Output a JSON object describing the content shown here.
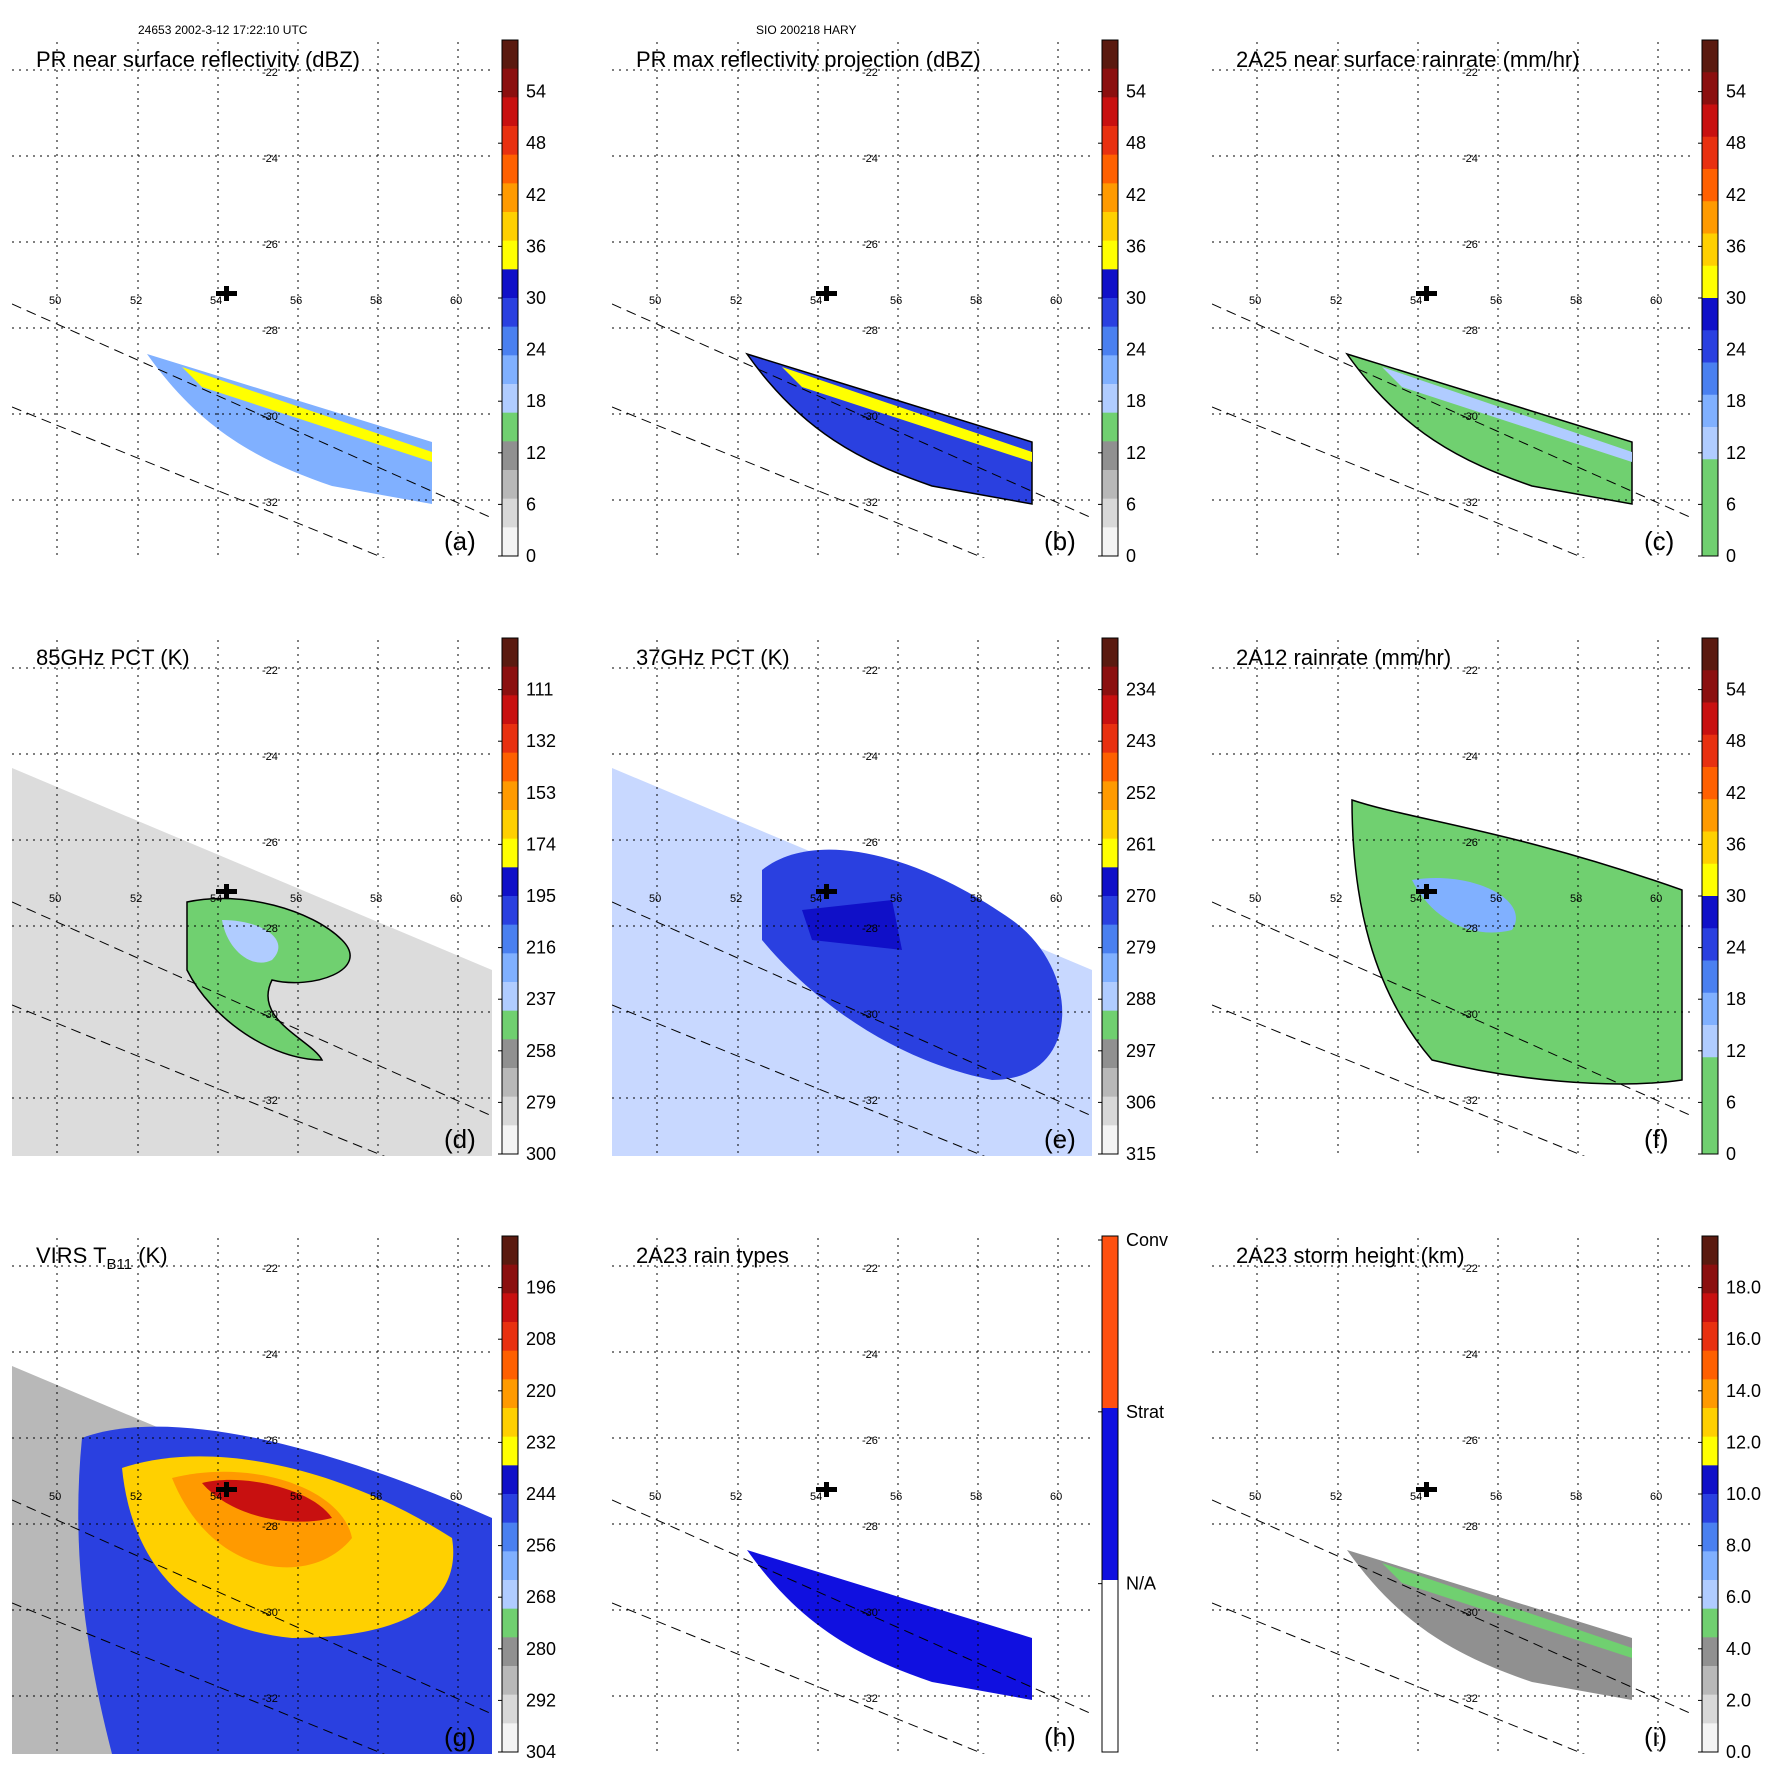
{
  "header": {
    "orbit_info": "24653 2002-3-12 17:22:10 UTC",
    "storm_info": "SIO 200218 HARY"
  },
  "lon_labels": [
    "50",
    "52",
    "54",
    "56",
    "58",
    "60"
  ],
  "lat_labels": [
    "-22",
    "-24",
    "-26",
    "-28",
    "-30",
    "-32"
  ],
  "panels": [
    {
      "id": "a",
      "title": "PR near surface reflectivity (dBZ)",
      "label": "(a)",
      "cb_labels": [
        "54",
        "48",
        "42",
        "36",
        "30",
        "24",
        "18",
        "12",
        "6",
        "0"
      ],
      "cb_colors": [
        "#5a1a10",
        "#8b0f0f",
        "#c81010",
        "#e83010",
        "#ff6000",
        "#ff9a00",
        "#ffd000",
        "#ffff00",
        "#1010c8",
        "#2a40e0",
        "#4a80f0",
        "#80b0ff",
        "#b0ccff",
        "#70d070",
        "#909090",
        "#b8b8b8",
        "#d8d8d8",
        "#f4f4f4"
      ],
      "swath": "pr"
    },
    {
      "id": "b",
      "title": "PR max reflectivity projection (dBZ)",
      "label": "(b)",
      "cb_labels": [
        "54",
        "48",
        "42",
        "36",
        "30",
        "24",
        "18",
        "12",
        "6",
        "0"
      ],
      "cb_colors": [
        "#5a1a10",
        "#8b0f0f",
        "#c81010",
        "#e83010",
        "#ff6000",
        "#ff9a00",
        "#ffd000",
        "#ffff00",
        "#1010c8",
        "#2a40e0",
        "#4a80f0",
        "#80b0ff",
        "#b0ccff",
        "#70d070",
        "#909090",
        "#b8b8b8",
        "#d8d8d8",
        "#f4f4f4"
      ],
      "swath": "pr"
    },
    {
      "id": "c",
      "title": "2A25 near surface rainrate (mm/hr)",
      "label": "(c)",
      "cb_labels": [
        "54",
        "48",
        "42",
        "36",
        "30",
        "24",
        "18",
        "12",
        "6",
        "0"
      ],
      "cb_colors": [
        "#5a1a10",
        "#8b0f0f",
        "#c81010",
        "#e83010",
        "#ff6000",
        "#ff9a00",
        "#ffd000",
        "#ffff00",
        "#1010c8",
        "#2a40e0",
        "#4a80f0",
        "#80b0ff",
        "#b0ccff",
        "#70d070",
        "#70d070",
        "#70d070"
      ],
      "swath": "pr"
    },
    {
      "id": "d",
      "title": "85GHz PCT (K)",
      "label": "(d)",
      "cb_labels": [
        "111",
        "132",
        "153",
        "174",
        "195",
        "216",
        "237",
        "258",
        "279",
        "300"
      ],
      "cb_colors": [
        "#5a1a10",
        "#8b0f0f",
        "#c81010",
        "#e83010",
        "#ff6000",
        "#ff9a00",
        "#ffd000",
        "#ffff00",
        "#1010c8",
        "#2a40e0",
        "#4a80f0",
        "#80b0ff",
        "#b0ccff",
        "#70d070",
        "#909090",
        "#b8b8b8",
        "#d8d8d8",
        "#f4f4f4"
      ],
      "swath": "tmi"
    },
    {
      "id": "e",
      "title": "37GHz PCT (K)",
      "label": "(e)",
      "cb_labels": [
        "234",
        "243",
        "252",
        "261",
        "270",
        "279",
        "288",
        "297",
        "306",
        "315"
      ],
      "cb_colors": [
        "#5a1a10",
        "#8b0f0f",
        "#c81010",
        "#e83010",
        "#ff6000",
        "#ff9a00",
        "#ffd000",
        "#ffff00",
        "#1010c8",
        "#2a40e0",
        "#4a80f0",
        "#80b0ff",
        "#b0ccff",
        "#70d070",
        "#909090",
        "#b8b8b8",
        "#d8d8d8",
        "#f4f4f4"
      ],
      "swath": "tmi"
    },
    {
      "id": "f",
      "title": "2A12 rainrate (mm/hr)",
      "label": "(f)",
      "cb_labels": [
        "54",
        "48",
        "42",
        "36",
        "30",
        "24",
        "18",
        "12",
        "6",
        "0"
      ],
      "cb_colors": [
        "#5a1a10",
        "#8b0f0f",
        "#c81010",
        "#e83010",
        "#ff6000",
        "#ff9a00",
        "#ffd000",
        "#ffff00",
        "#1010c8",
        "#2a40e0",
        "#4a80f0",
        "#80b0ff",
        "#b0ccff",
        "#70d070",
        "#70d070",
        "#70d070"
      ],
      "swath": "tmi"
    },
    {
      "id": "g",
      "title": "VIRS T",
      "title_sub": "B11",
      "title_end": " (K)",
      "label": "(g)",
      "cb_labels": [
        "196",
        "208",
        "220",
        "232",
        "244",
        "256",
        "268",
        "280",
        "292",
        "304"
      ],
      "cb_colors": [
        "#5a1a10",
        "#8b0f0f",
        "#c81010",
        "#e83010",
        "#ff6000",
        "#ff9a00",
        "#ffd000",
        "#ffff00",
        "#1010c8",
        "#2a40e0",
        "#4a80f0",
        "#80b0ff",
        "#b0ccff",
        "#70d070",
        "#909090",
        "#b8b8b8",
        "#d8d8d8",
        "#f4f4f4"
      ],
      "swath": "virs"
    },
    {
      "id": "h",
      "title": "2A23 rain types",
      "label": "(h)",
      "cb_labels": [
        "Conv",
        "Strat",
        "N/A"
      ],
      "cb_colors": [
        "#ff5010",
        "#ff5010",
        "#1010e0",
        "#1010e0",
        "#ffffff",
        "#ffffff"
      ],
      "swath": "pr"
    },
    {
      "id": "i",
      "title": "2A23 storm height (km)",
      "label": "(i)",
      "cb_labels": [
        "18.0",
        "16.0",
        "14.0",
        "12.0",
        "10.0",
        "8.0",
        "6.0",
        "4.0",
        "2.0",
        "0.0"
      ],
      "cb_colors": [
        "#5a1a10",
        "#8b0f0f",
        "#c81010",
        "#e83010",
        "#ff6000",
        "#ff9a00",
        "#ffd000",
        "#ffff00",
        "#1010c8",
        "#2a40e0",
        "#4a80f0",
        "#80b0ff",
        "#b0ccff",
        "#70d070",
        "#909090",
        "#b8b8b8",
        "#d8d8d8",
        "#f4f4f4"
      ],
      "swath": "pr"
    }
  ]
}
